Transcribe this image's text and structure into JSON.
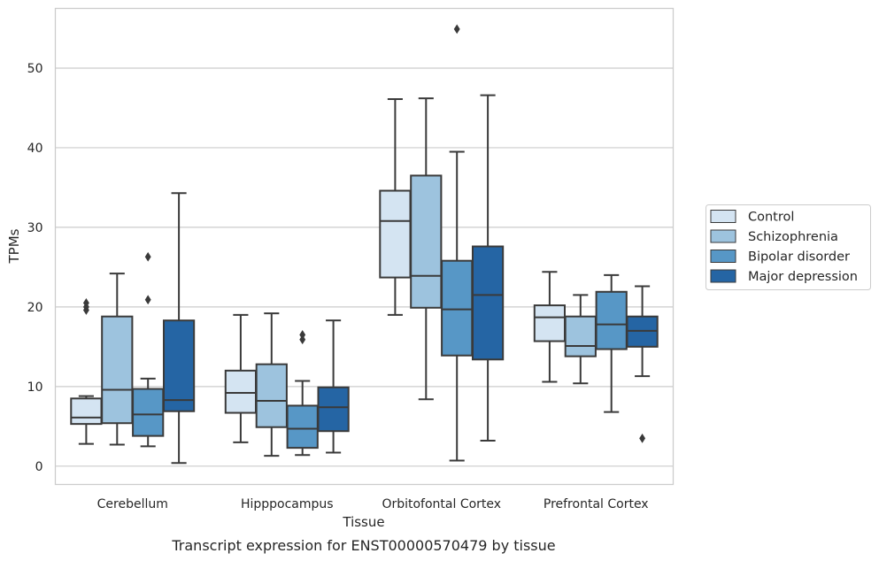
{
  "chart_data": {
    "type": "box",
    "caption": "Transcript expression for ENST00000570479 by tissue",
    "xlabel": "Tissue",
    "ylabel": "TPMs",
    "ylim": [
      -2.3,
      57.5
    ],
    "yticks": [
      0,
      10,
      20,
      30,
      40,
      50
    ],
    "grid": "horizontal",
    "legend_position": "right",
    "categories": [
      "Cerebellum",
      "Hipppocampus",
      "Orbitofontal Cortex",
      "Prefrontal Cortex"
    ],
    "series": [
      {
        "name": "Control",
        "color": "#d4e4f2",
        "boxes": [
          {
            "whislo": 2.8,
            "q1": 5.3,
            "med": 6.1,
            "q3": 8.5,
            "whishi": 8.8,
            "fliers": [
              19.6,
              20.0,
              20.5
            ]
          },
          {
            "whislo": 3.0,
            "q1": 6.7,
            "med": 9.2,
            "q3": 12.0,
            "whishi": 19.0,
            "fliers": []
          },
          {
            "whislo": 19.0,
            "q1": 23.7,
            "med": 30.8,
            "q3": 34.6,
            "whishi": 46.1,
            "fliers": []
          },
          {
            "whislo": 10.6,
            "q1": 15.7,
            "med": 18.7,
            "q3": 20.2,
            "whishi": 24.4,
            "fliers": []
          }
        ]
      },
      {
        "name": "Schizophrenia",
        "color": "#9dc3de",
        "boxes": [
          {
            "whislo": 2.7,
            "q1": 5.4,
            "med": 9.6,
            "q3": 18.8,
            "whishi": 24.2,
            "fliers": []
          },
          {
            "whislo": 1.3,
            "q1": 4.9,
            "med": 8.2,
            "q3": 12.8,
            "whishi": 19.2,
            "fliers": []
          },
          {
            "whislo": 8.4,
            "q1": 19.9,
            "med": 23.9,
            "q3": 36.5,
            "whishi": 46.2,
            "fliers": []
          },
          {
            "whislo": 10.4,
            "q1": 13.8,
            "med": 15.1,
            "q3": 18.8,
            "whishi": 21.5,
            "fliers": []
          }
        ]
      },
      {
        "name": "Bipolar disorder",
        "color": "#5797c6",
        "boxes": [
          {
            "whislo": 2.5,
            "q1": 3.8,
            "med": 6.5,
            "q3": 9.7,
            "whishi": 11.0,
            "fliers": [
              20.9,
              26.3
            ]
          },
          {
            "whislo": 1.4,
            "q1": 2.3,
            "med": 4.7,
            "q3": 7.6,
            "whishi": 10.7,
            "fliers": [
              15.9,
              16.5
            ]
          },
          {
            "whislo": 0.7,
            "q1": 13.9,
            "med": 19.7,
            "q3": 25.8,
            "whishi": 39.5,
            "fliers": [
              54.9
            ]
          },
          {
            "whislo": 6.8,
            "q1": 14.7,
            "med": 17.8,
            "q3": 21.9,
            "whishi": 24.0,
            "fliers": []
          }
        ]
      },
      {
        "name": "Major depression",
        "color": "#2565a4",
        "boxes": [
          {
            "whislo": 0.4,
            "q1": 6.9,
            "med": 8.3,
            "q3": 18.3,
            "whishi": 34.3,
            "fliers": []
          },
          {
            "whislo": 1.7,
            "q1": 4.4,
            "med": 7.4,
            "q3": 9.9,
            "whishi": 18.3,
            "fliers": []
          },
          {
            "whislo": 3.2,
            "q1": 13.4,
            "med": 21.5,
            "q3": 27.6,
            "whishi": 46.6,
            "fliers": []
          },
          {
            "whislo": 11.3,
            "q1": 15.0,
            "med": 17.0,
            "q3": 18.8,
            "whishi": 22.6,
            "fliers": [
              3.5
            ]
          }
        ]
      }
    ]
  }
}
